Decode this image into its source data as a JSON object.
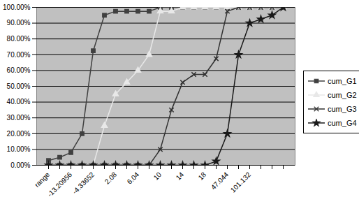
{
  "chart_data": {
    "type": "line",
    "categories": [
      "range",
      null,
      "-13.20956",
      null,
      "-4.33652",
      null,
      "2.08",
      null,
      "6.04",
      null,
      "10",
      null,
      "14",
      null,
      "18",
      null,
      "47.044",
      null,
      "101.132",
      null,
      null,
      null
    ],
    "series": [
      {
        "name": "cum_G1",
        "color": "#404040",
        "marker": "square",
        "values": [
          3,
          5,
          8,
          20,
          72.5,
          95,
          97.5,
          97.5,
          97.5,
          97.5,
          100,
          100,
          100,
          100,
          100,
          100,
          100,
          100,
          100,
          100,
          100,
          100
        ]
      },
      {
        "name": "cum_G2",
        "color": "#e8e8e8",
        "marker": "triangle",
        "values": [
          0,
          0,
          0,
          0,
          0,
          25,
          45,
          52.5,
          60,
          70,
          97.5,
          97.5,
          100,
          100,
          100,
          100,
          100,
          100,
          100,
          100,
          100,
          100
        ]
      },
      {
        "name": "cum_G3",
        "color": "#303030",
        "marker": "times",
        "values": [
          0,
          0,
          0,
          0,
          0,
          0,
          0,
          0,
          0,
          0,
          10,
          35,
          52.5,
          57.5,
          57.5,
          67.5,
          97.5,
          100,
          100,
          100,
          100,
          100
        ]
      },
      {
        "name": "cum_G4",
        "color": "#1a1a1a",
        "marker": "star",
        "values": [
          0,
          0,
          0,
          0,
          0,
          0,
          0,
          0,
          0,
          0,
          0,
          0,
          0,
          0,
          0,
          2.5,
          20,
          70,
          90,
          92.5,
          95,
          100
        ]
      }
    ],
    "ylim": [
      0,
      100
    ],
    "yticks": [
      {
        "value": 0,
        "label": "0.00%"
      },
      {
        "value": 10,
        "label": "10.00%"
      },
      {
        "value": 20,
        "label": "20.00%"
      },
      {
        "value": 30,
        "label": "30.00%"
      },
      {
        "value": 40,
        "label": "40.00%"
      },
      {
        "value": 50,
        "label": "50.00%"
      },
      {
        "value": 60,
        "label": "60.00%"
      },
      {
        "value": 70,
        "label": "70.00%"
      },
      {
        "value": 80,
        "label": "80.00%"
      },
      {
        "value": 90,
        "label": "90.00%"
      },
      {
        "value": 100,
        "label": "100.00%"
      }
    ],
    "grid": true,
    "legend": "right"
  }
}
